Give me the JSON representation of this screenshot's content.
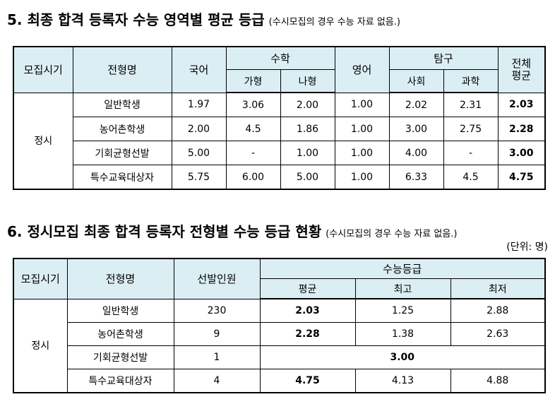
{
  "section5": {
    "title": "5. 최종 합격 등록자 수능 영역별 평균 등급",
    "note": "(수시모집의 경우 수능 자료 없음.)",
    "headers": {
      "period": "모집시기",
      "type": "전형명",
      "korean": "국어",
      "math": "수학",
      "math_ga": "가형",
      "math_na": "나형",
      "english": "영어",
      "inquiry": "탐구",
      "social": "사회",
      "science": "과학",
      "total": "전체\n평균"
    },
    "period_value": "정시",
    "rows": [
      {
        "type": "일반학생",
        "korean": "1.97",
        "math_ga": "3.06",
        "math_na": "2.00",
        "english": "1.00",
        "social": "2.02",
        "science": "2.31",
        "total": "2.03"
      },
      {
        "type": "농어촌학생",
        "korean": "2.00",
        "math_ga": "4.5",
        "math_na": "1.86",
        "english": "1.00",
        "social": "3.00",
        "science": "2.75",
        "total": "2.28"
      },
      {
        "type": "기회균형선발",
        "korean": "5.00",
        "math_ga": "-",
        "math_na": "1.00",
        "english": "1.00",
        "social": "4.00",
        "science": "-",
        "total": "3.00"
      },
      {
        "type": "특수교육대상자",
        "korean": "5.75",
        "math_ga": "6.00",
        "math_na": "5.00",
        "english": "1.00",
        "social": "6.33",
        "science": "4.5",
        "total": "4.75"
      }
    ]
  },
  "section6": {
    "title": "6. 정시모집 최종 합격 등록자 전형별 수능 등급 현황",
    "note": "(수시모집의 경우 수능 자료 없음.)",
    "unit": "(단위: 명)",
    "headers": {
      "period": "모집시기",
      "type": "전형명",
      "selected": "선발인원",
      "grade": "수능등급",
      "avg": "평균",
      "best": "최고",
      "worst": "최저"
    },
    "period_value": "정시",
    "rows": [
      {
        "type": "일반학생",
        "selected": "230",
        "avg": "2.03",
        "best": "1.25",
        "worst": "2.88"
      },
      {
        "type": "농어촌학생",
        "selected": "9",
        "avg": "2.28",
        "best": "1.38",
        "worst": "2.63"
      },
      {
        "type": "기회균형선발",
        "selected": "1",
        "merged": "3.00"
      },
      {
        "type": "특수교육대상자",
        "selected": "4",
        "avg": "4.75",
        "best": "4.13",
        "worst": "4.88"
      }
    ]
  }
}
